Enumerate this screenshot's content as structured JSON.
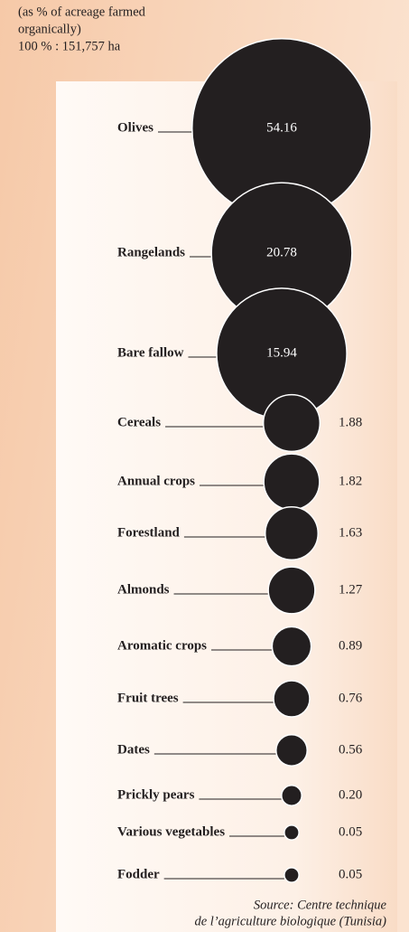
{
  "chart_data": {
    "type": "bubble",
    "subtitle": [
      "(as % of acreage farmed",
      "organically)",
      "100 % : 151,757 ha"
    ],
    "categories": [
      "Olives",
      "Rangelands",
      "Bare fallow",
      "Cereals",
      "Annual crops",
      "Forestland",
      "Almonds",
      "Aromatic crops",
      "Fruit trees",
      "Dates",
      "Prickly pears",
      "Various vegetables",
      "Fodder"
    ],
    "values": [
      54.16,
      20.78,
      15.94,
      1.88,
      1.82,
      1.63,
      1.27,
      0.89,
      0.76,
      0.56,
      0.2,
      0.05,
      0.05
    ],
    "value_labels": [
      "54.16",
      "20.78",
      "15.94",
      "1.88",
      "1.82",
      "1.63",
      "1.27",
      "0.89",
      "0.76",
      "0.56",
      "0.20",
      "0.05",
      "0.05"
    ],
    "color": "#231f20",
    "source": [
      "Source: Centre technique",
      "de l’agriculture biologique (Tunisia)"
    ]
  }
}
